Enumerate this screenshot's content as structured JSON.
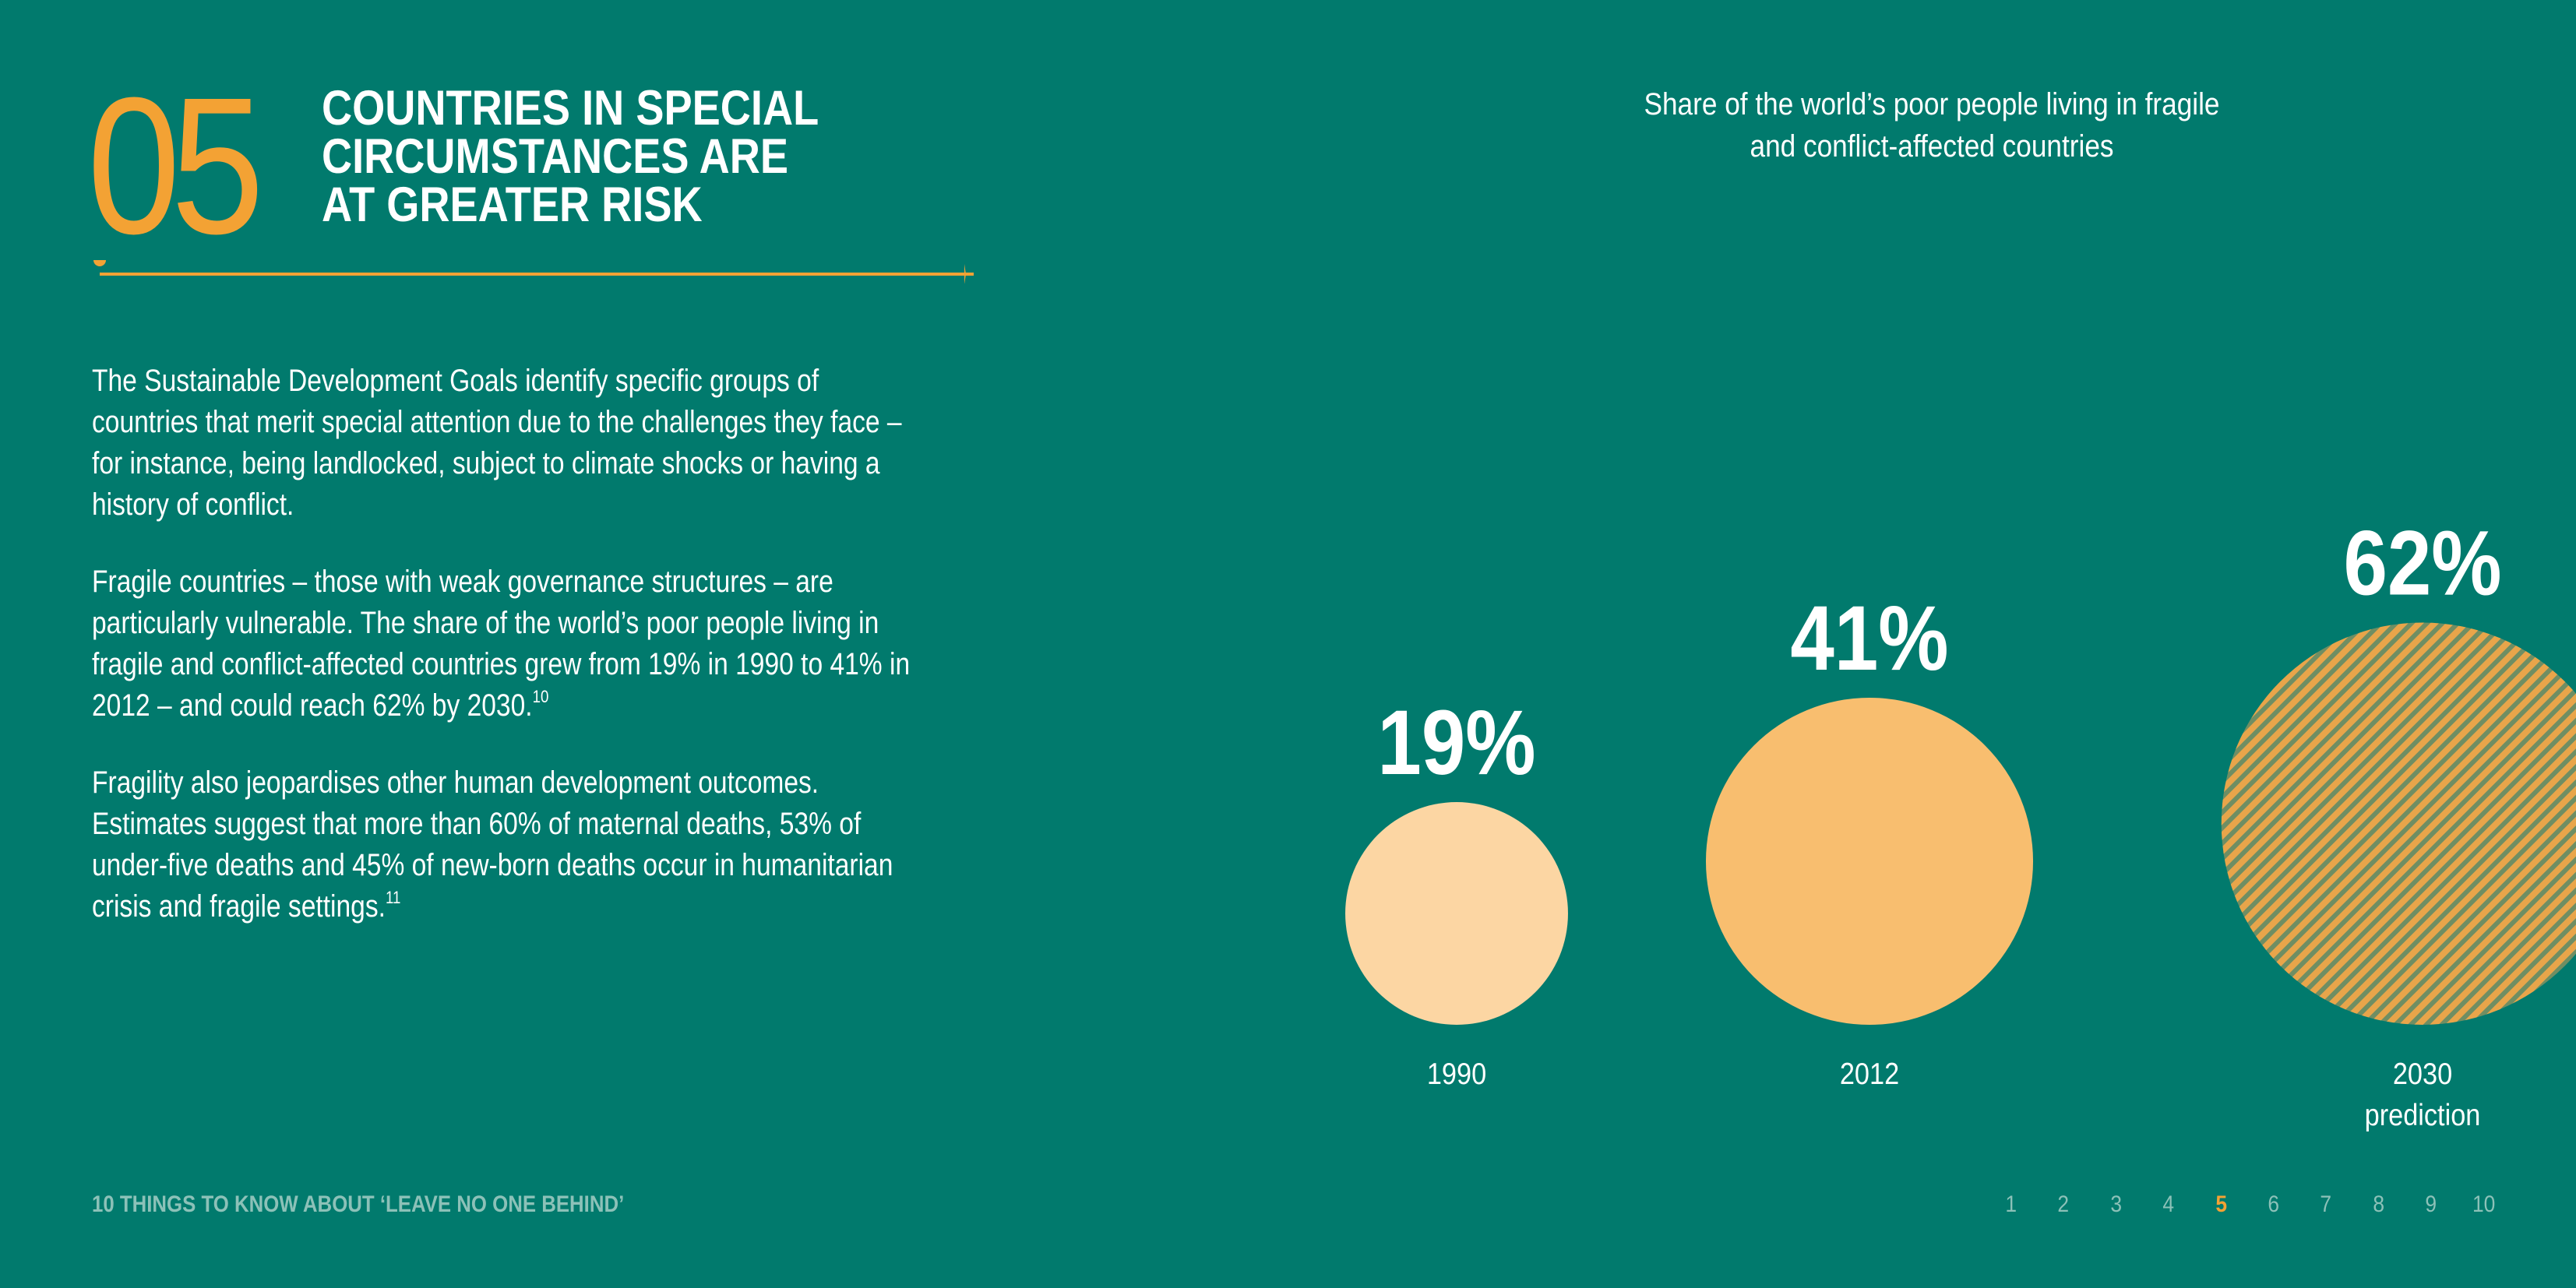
{
  "section": {
    "number": "05",
    "headline_lines": [
      "COUNTRIES IN SPECIAL",
      "CIRCUMSTANCES ARE",
      "AT GREATER RISK"
    ]
  },
  "body": {
    "paragraph1": "The Sustainable Development Goals identify specific groups of countries that merit special attention due to the challenges they face – for instance, being landlocked, subject to climate shocks or having a history of conflict.",
    "paragraph2": "Fragile countries – those with weak governance structures – are particularly vulnerable. The share of the world’s poor people living in fragile and conflict-affected countries grew from 19% in 1990 to 41% in 2012 – and could reach 62% by 2030.",
    "paragraph2_note": "10",
    "paragraph3": "Fragility also jeopardises other human development outcomes. Estimates suggest that more than 60% of maternal deaths, 53% of under-five deaths and 45% of new-born deaths occur in humanitarian crisis and fragile settings.",
    "paragraph3_note": "11"
  },
  "chart_data": {
    "type": "bubble",
    "title": "Share of the world’s poor people living in fragile and conflict-affected countries",
    "categories": [
      "1990",
      "2012",
      "2030 prediction"
    ],
    "category_lines": [
      [
        "1990"
      ],
      [
        "2012"
      ],
      [
        "2030",
        "prediction"
      ]
    ],
    "values": [
      19,
      41,
      62
    ],
    "value_labels": [
      "19%",
      "41%",
      "62%"
    ],
    "unit": "%",
    "styles": [
      "solid",
      "solid",
      "hatched"
    ],
    "colors": [
      "#FCD6A3",
      "#F8BE6F",
      "#E8A54A"
    ],
    "hatch_background": "#6F8E63"
  },
  "footer": {
    "title": "10 THINGS TO KNOW ABOUT ‘LEAVE NO ONE BEHIND’",
    "pages": [
      "1",
      "2",
      "3",
      "4",
      "5",
      "6",
      "7",
      "8",
      "9",
      "10"
    ],
    "active_page": "5"
  },
  "colors": {
    "background": "#017A6D",
    "accent": "#F3A234",
    "text": "#FFFFFF",
    "muted": "#8CC1B8"
  }
}
